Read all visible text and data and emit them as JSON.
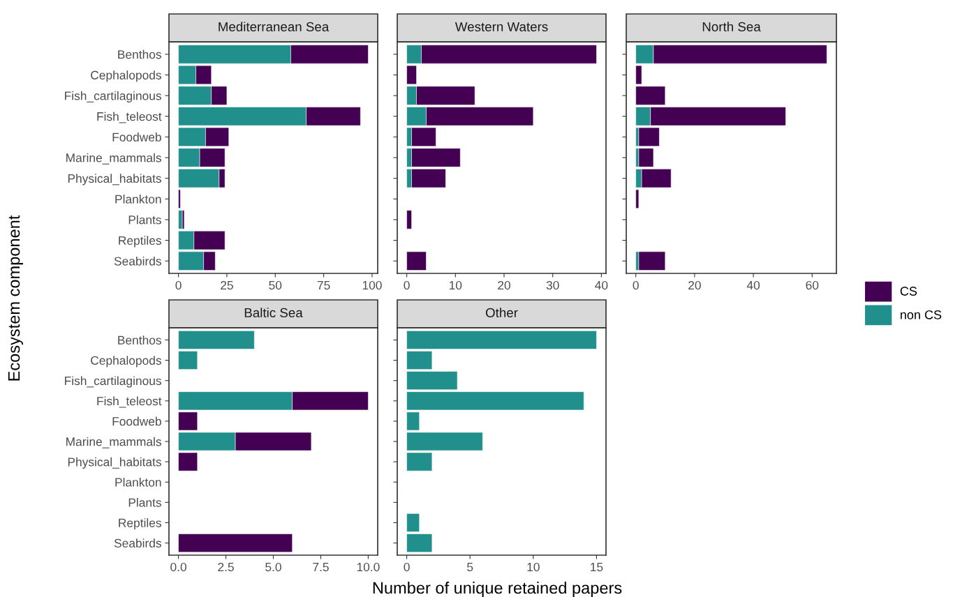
{
  "chart_data": [
    {
      "type": "bar",
      "orientation": "horizontal",
      "stacked": true,
      "title": "Mediterranean Sea",
      "ylabel": "Ecosystem component",
      "legend": "right",
      "categories": [
        "Benthos",
        "Cephalopods",
        "Fish_cartilaginous",
        "Fish_teleost",
        "Foodweb",
        "Marine_mammals",
        "Physical_habitats",
        "Plankton",
        "Plants",
        "Reptiles",
        "Seabirds"
      ],
      "series": [
        {
          "name": "non CS",
          "color": "#21908c",
          "values": [
            58,
            9,
            17,
            66,
            14,
            11,
            21,
            null,
            2,
            8,
            13
          ]
        },
        {
          "name": "CS",
          "color": "#440154",
          "values": [
            40,
            8,
            8,
            28,
            12,
            13,
            3,
            1,
            1,
            16,
            6
          ]
        }
      ],
      "xlim": [
        -4.9,
        102.9
      ],
      "xticks": [
        0,
        25,
        50,
        75,
        100
      ],
      "grid": false
    },
    {
      "type": "bar",
      "orientation": "horizontal",
      "stacked": true,
      "title": "Western Waters",
      "tick_labels": "x",
      "categories": [
        null,
        null,
        null,
        null,
        null,
        null,
        null,
        null,
        null,
        null,
        null
      ],
      "series": [
        {
          "color": "#21908c",
          "values": [
            3,
            null,
            2,
            4,
            1,
            1,
            1,
            null,
            null,
            null,
            null
          ]
        },
        {
          "color": "#440154",
          "values": [
            36,
            2,
            12,
            22,
            5,
            10,
            7,
            null,
            1,
            null,
            4
          ]
        }
      ],
      "xlim": [
        -1.95,
        40.95
      ],
      "xticks": [
        0,
        10,
        20,
        30,
        40
      ],
      "grid": false
    },
    {
      "type": "bar",
      "orientation": "horizontal",
      "stacked": true,
      "title": "North Sea",
      "tick_labels": "x",
      "categories": [
        null,
        null,
        null,
        null,
        null,
        null,
        null,
        null,
        null,
        null,
        null
      ],
      "series": [
        {
          "color": "#21908c",
          "values": [
            6,
            null,
            null,
            5,
            1,
            1,
            2,
            null,
            null,
            null,
            1
          ]
        },
        {
          "color": "#440154",
          "values": [
            59,
            2,
            10,
            46,
            7,
            5,
            10,
            1,
            null,
            null,
            9
          ]
        }
      ],
      "xlim": [
        -3.25,
        68.25
      ],
      "xticks": [
        0,
        20,
        40,
        60
      ],
      "grid": false
    },
    {
      "type": "bar",
      "orientation": "horizontal",
      "stacked": true,
      "title": "Baltic Sea",
      "xlabel": "Number of unique retained papers",
      "categories": [
        "Benthos",
        "Cephalopods",
        "Fish_cartilaginous",
        "Fish_teleost",
        "Foodweb",
        "Marine_mammals",
        "Physical_habitats",
        "Plankton",
        "Plants",
        "Reptiles",
        "Seabirds"
      ],
      "series": [
        {
          "color": "#21908c",
          "values": [
            4,
            1,
            null,
            6,
            null,
            3,
            null,
            null,
            null,
            null,
            null
          ]
        },
        {
          "color": "#440154",
          "values": [
            null,
            null,
            null,
            4,
            1,
            4,
            1,
            null,
            null,
            null,
            6
          ]
        }
      ],
      "xlim": [
        -0.5,
        10.5
      ],
      "xticks": [
        {
          "value": 0,
          "label": "0.0"
        },
        2.5,
        {
          "value": 5,
          "label": "5.0"
        },
        7.5,
        {
          "value": 10,
          "label": "10.0"
        }
      ],
      "grid": false
    },
    {
      "type": "bar",
      "orientation": "horizontal",
      "stacked": true,
      "title": "Other",
      "tick_labels": "x",
      "categories": [
        null,
        null,
        null,
        null,
        null,
        null,
        null,
        null,
        null,
        null,
        null
      ],
      "series": [
        {
          "color": "#21908c",
          "values": [
            15,
            2,
            4,
            14,
            1,
            6,
            2,
            null,
            null,
            1,
            2
          ]
        }
      ],
      "xlim": [
        -0.75,
        15.75
      ],
      "xticks": [
        0,
        5,
        10,
        15
      ],
      "grid": false
    }
  ]
}
